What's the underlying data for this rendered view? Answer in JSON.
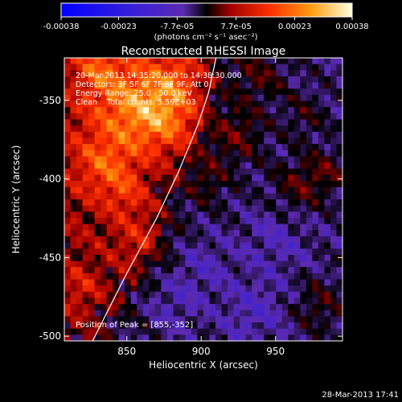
{
  "chart_data": {
    "type": "heatmap",
    "title": "Reconstructed RHESSI Image",
    "xlabel": "Heliocentric X (arcsec)",
    "ylabel": "Heliocentric Y (arcsec)",
    "xlim": [
      808,
      995
    ],
    "ylim": [
      -503,
      -323
    ],
    "xticks": [
      850,
      900,
      950
    ],
    "yticks": [
      -350,
      -400,
      -450,
      -500
    ],
    "colorbar": {
      "min": -0.00038,
      "max": 0.00038,
      "ticks": [
        "-0.00038",
        "-0.00023",
        "-7.7e-05",
        "7.7e-05",
        "0.00023",
        "0.00038"
      ],
      "tick_values": [
        -0.00038,
        -0.00023,
        -7.7e-05,
        7.7e-05,
        0.00023,
        0.00038
      ],
      "unit_label": "(photons cm⁻² s⁻¹ asec⁻²)"
    },
    "annotations": [
      "20-Mar-2013 14:35:20.000 to 14:38:30.000",
      "Detectors: 3F 5F 6F 7F 8F 9F, Att 0",
      "Energy Range: 25.0 - 50.0 keV",
      "Clean    Total counts: 5.59E+03"
    ],
    "peak_label": "Position of Peak = [855,-352]",
    "peak": [
      855,
      -352
    ],
    "limb_curve": [
      [
        827,
        -503
      ],
      [
        850,
        -460
      ],
      [
        870,
        -425
      ],
      [
        885,
        -395
      ],
      [
        898,
        -365
      ],
      [
        905,
        -345
      ],
      [
        910,
        -323
      ]
    ],
    "grid": false,
    "legend": "none"
  },
  "footer": {
    "timestamp": "28-Mar-2013 17:41"
  }
}
